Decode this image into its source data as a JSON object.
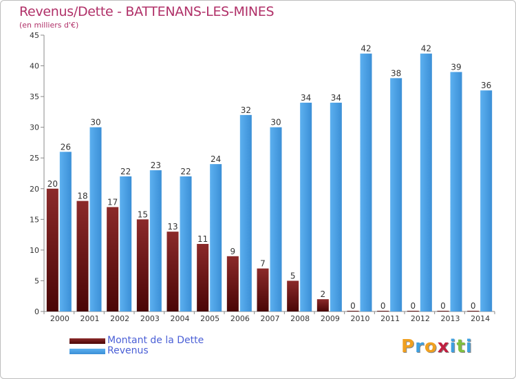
{
  "header": {
    "title": "Revenus/Dette - BATTENANS-LES-MINES",
    "subtitle": "(en milliers d'€)"
  },
  "legend": {
    "items": [
      {
        "label": "Montant de la Dette",
        "color": "#7a1414"
      },
      {
        "label": "Revenus",
        "color": "#3f9ee6"
      }
    ]
  },
  "logo": {
    "letters": [
      "P",
      "r",
      "o",
      "x",
      "i",
      "t",
      "i"
    ],
    "colors": [
      "#f0a020",
      "#3fa0e0",
      "#f0a020",
      "#c02040",
      "#3fa0e0",
      "#80c040",
      "#3fa0e0"
    ]
  },
  "chart_data": {
    "type": "bar",
    "title": "Revenus/Dette - BATTENANS-LES-MINES",
    "subtitle": "(en milliers d'€)",
    "xlabel": "",
    "ylabel": "",
    "ylim": [
      0,
      45
    ],
    "yticks": [
      0,
      5,
      10,
      15,
      20,
      25,
      30,
      35,
      40,
      45
    ],
    "grid": false,
    "legend_position": "bottom-left",
    "categories": [
      "2000",
      "2001",
      "2002",
      "2003",
      "2004",
      "2005",
      "2006",
      "2007",
      "2008",
      "2009",
      "2010",
      "2011",
      "2012",
      "2013",
      "2014"
    ],
    "series": [
      {
        "name": "Montant de la Dette",
        "color": "#7a1414",
        "values": [
          20,
          18,
          17,
          15,
          13,
          11,
          9,
          7,
          5,
          2,
          0,
          0,
          0,
          0,
          0
        ]
      },
      {
        "name": "Revenus",
        "color": "#3f9ee6",
        "values": [
          26,
          30,
          22,
          23,
          22,
          24,
          32,
          30,
          34,
          34,
          42,
          38,
          42,
          39,
          36
        ]
      }
    ]
  }
}
